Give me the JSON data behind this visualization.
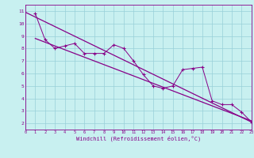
{
  "title": "",
  "xlabel": "Windchill (Refroidissement éolien,°C)",
  "bg_color": "#c8f0f0",
  "grid_color": "#98d0d8",
  "line_color": "#880088",
  "scatter_x": [
    1,
    2,
    3,
    4,
    5,
    6,
    7,
    8,
    9,
    10,
    11,
    12,
    13,
    14,
    15,
    16,
    17,
    18,
    19,
    20,
    21,
    22,
    23
  ],
  "scatter_y": [
    10.8,
    8.7,
    8.0,
    8.2,
    8.4,
    7.6,
    7.6,
    7.6,
    8.3,
    8.0,
    7.0,
    5.9,
    5.0,
    4.8,
    5.0,
    6.3,
    6.4,
    6.5,
    3.8,
    3.5,
    3.5,
    2.9,
    2.1
  ],
  "trend_x": [
    0,
    23
  ],
  "trend_y": [
    10.9,
    2.1
  ],
  "trend2_x": [
    1,
    23
  ],
  "trend2_y": [
    8.8,
    2.2
  ],
  "xlim": [
    0,
    23
  ],
  "ylim": [
    1.5,
    11.5
  ],
  "xticks": [
    0,
    1,
    2,
    3,
    4,
    5,
    6,
    7,
    8,
    9,
    10,
    11,
    12,
    13,
    14,
    15,
    16,
    17,
    18,
    19,
    20,
    21,
    22,
    23
  ],
  "yticks": [
    2,
    3,
    4,
    5,
    6,
    7,
    8,
    9,
    10,
    11
  ]
}
